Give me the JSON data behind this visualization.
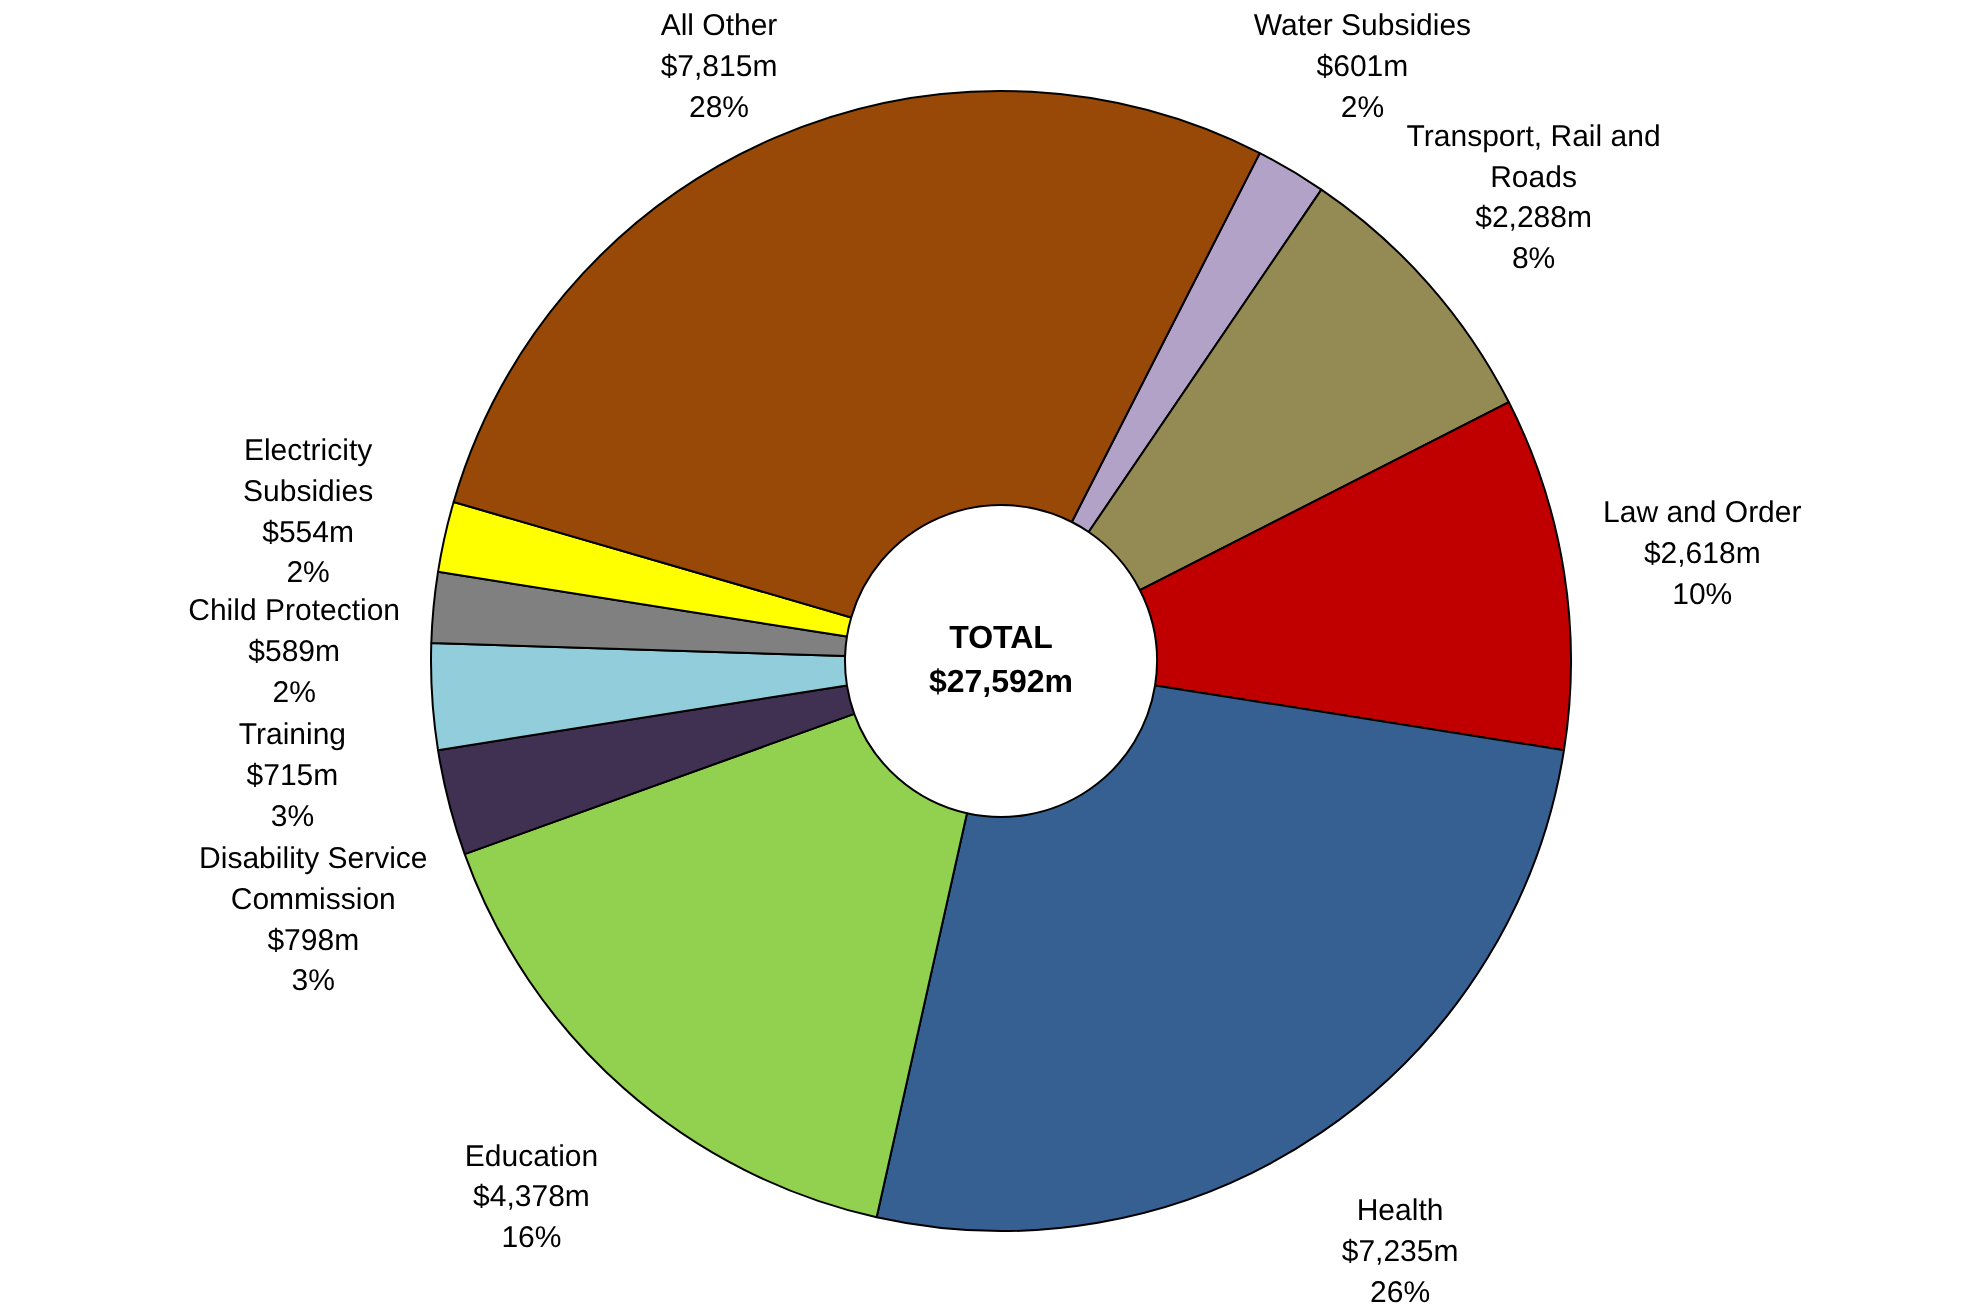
{
  "chart_data": {
    "type": "donut",
    "categories": [
      "Water Subsidies",
      "Transport, Rail and Roads",
      "Law and Order",
      "Health",
      "Education",
      "Disability Service Commission",
      "Training",
      "Child Protection",
      "Electricity Subsidies",
      "All Other"
    ],
    "values": [
      2,
      8,
      10,
      26,
      16,
      3,
      3,
      2,
      2,
      28
    ],
    "colors": [
      "#b3a2c7",
      "#948a54",
      "#c00000",
      "#376092",
      "#92d050",
      "#403152",
      "#92cddc",
      "#808080",
      "#ffff00",
      "#984807"
    ],
    "value_labels": [
      "$601m\n2%",
      "$2,288m\n8%",
      "$2,618m\n10%",
      "$7,235m\n26%",
      "$4,378m\n16%",
      "$798m\n3%",
      "$715m\n3%",
      "$589m\n2%",
      "$554m\n2%",
      "$7,815m\n28%"
    ],
    "annotations": [
      "TOTAL\n$27,592m"
    ]
  }
}
